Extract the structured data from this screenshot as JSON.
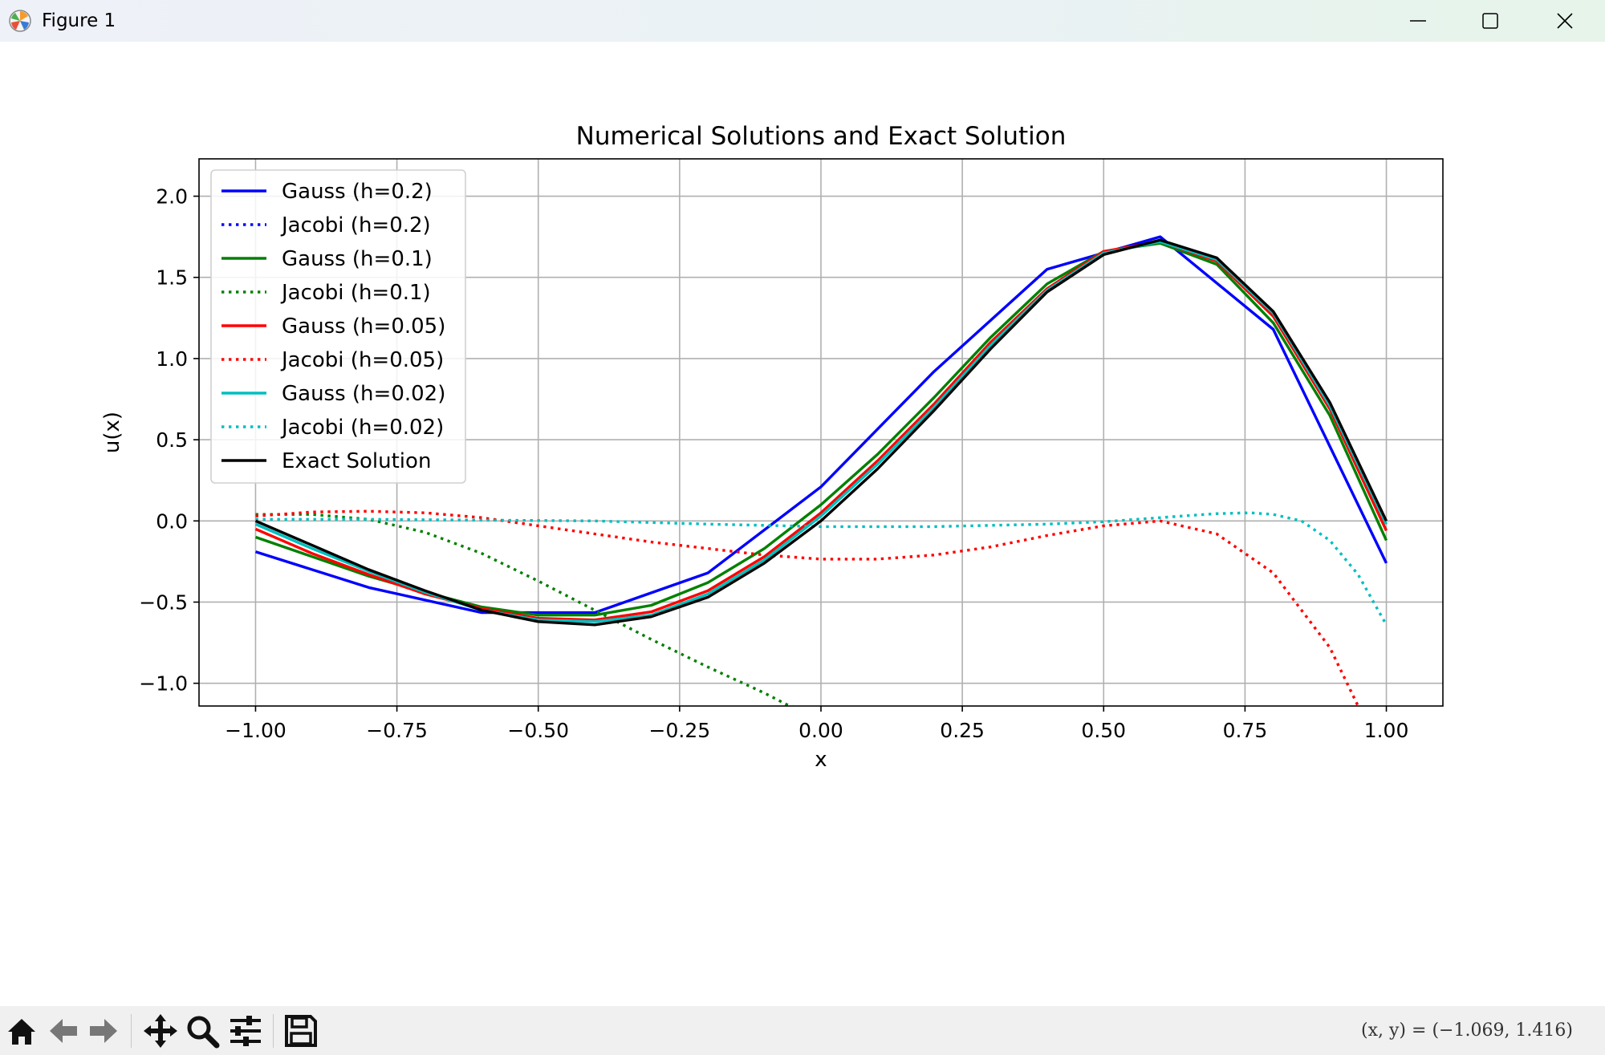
{
  "window": {
    "title": "Figure 1"
  },
  "status": {
    "coords": "(x, y) = (−1.069, 1.416)"
  },
  "toolbar": {
    "buttons": [
      "home-icon",
      "back-arrow-icon",
      "forward-arrow-icon",
      "pan-icon",
      "zoom-icon",
      "configure-subplots-icon",
      "save-icon"
    ]
  },
  "chart_data": {
    "type": "line",
    "title": "Numerical Solutions and Exact Solution",
    "xlabel": "x",
    "ylabel": "u(x)",
    "xlim": [
      -1.1,
      1.1
    ],
    "ylim": [
      -1.14,
      2.23
    ],
    "xticks": [
      -1.0,
      -0.75,
      -0.5,
      -0.25,
      0.0,
      0.25,
      0.5,
      0.75,
      1.0
    ],
    "xtick_labels": [
      "−1.00",
      "−0.75",
      "−0.50",
      "−0.25",
      "0.00",
      "0.25",
      "0.50",
      "0.75",
      "1.00"
    ],
    "yticks": [
      -1.0,
      -0.5,
      0.0,
      0.5,
      1.0,
      1.5,
      2.0
    ],
    "ytick_labels": [
      "−1.0",
      "−0.5",
      "0.0",
      "0.5",
      "1.0",
      "1.5",
      "2.0"
    ],
    "grid": true,
    "legend_position": "upper-left",
    "series": [
      {
        "name": "Gauss (h=0.2)",
        "color": "#0000ff",
        "style": "solid",
        "x": [
          -1.0,
          -0.8,
          -0.6,
          -0.4,
          -0.2,
          0.0,
          0.2,
          0.4,
          0.6,
          0.8,
          1.0
        ],
        "y": [
          -0.19,
          -0.41,
          -0.565,
          -0.565,
          -0.32,
          0.21,
          0.92,
          1.55,
          1.75,
          1.18,
          -0.26
        ]
      },
      {
        "name": "Jacobi (h=0.2)",
        "color": "#0000ff",
        "style": "dotted",
        "x": [],
        "y": []
      },
      {
        "name": "Gauss (h=0.1)",
        "color": "#008000",
        "style": "solid",
        "x": [
          -1.0,
          -0.9,
          -0.8,
          -0.7,
          -0.6,
          -0.5,
          -0.4,
          -0.3,
          -0.2,
          -0.1,
          0.0,
          0.1,
          0.2,
          0.3,
          0.4,
          0.5,
          0.6,
          0.7,
          0.8,
          0.9,
          1.0
        ],
        "y": [
          -0.1,
          -0.22,
          -0.34,
          -0.44,
          -0.53,
          -0.58,
          -0.58,
          -0.52,
          -0.38,
          -0.17,
          0.1,
          0.41,
          0.76,
          1.13,
          1.46,
          1.66,
          1.71,
          1.58,
          1.22,
          0.65,
          -0.12
        ]
      },
      {
        "name": "Jacobi (h=0.1)",
        "color": "#008000",
        "style": "dotted",
        "x": [
          -1.0,
          -0.9,
          -0.8,
          -0.7,
          -0.6,
          -0.5,
          -0.4,
          -0.3,
          -0.2,
          -0.1,
          -0.05
        ],
        "y": [
          0.04,
          0.04,
          0.01,
          -0.07,
          -0.2,
          -0.37,
          -0.55,
          -0.73,
          -0.9,
          -1.06,
          -1.15
        ]
      },
      {
        "name": "Gauss (h=0.05)",
        "color": "#ff0000",
        "style": "solid",
        "x": [
          -1.0,
          -0.9,
          -0.8,
          -0.7,
          -0.6,
          -0.5,
          -0.4,
          -0.3,
          -0.2,
          -0.1,
          0.0,
          0.1,
          0.2,
          0.3,
          0.4,
          0.5,
          0.6,
          0.7,
          0.8,
          0.9,
          1.0
        ],
        "y": [
          -0.05,
          -0.2,
          -0.33,
          -0.45,
          -0.54,
          -0.6,
          -0.61,
          -0.56,
          -0.43,
          -0.22,
          0.05,
          0.37,
          0.72,
          1.1,
          1.43,
          1.66,
          1.72,
          1.6,
          1.26,
          0.69,
          -0.06
        ]
      },
      {
        "name": "Jacobi (h=0.05)",
        "color": "#ff0000",
        "style": "dotted",
        "x": [
          -1.0,
          -0.9,
          -0.8,
          -0.7,
          -0.6,
          -0.5,
          -0.4,
          -0.3,
          -0.2,
          -0.1,
          0.0,
          0.1,
          0.2,
          0.3,
          0.4,
          0.5,
          0.6,
          0.7,
          0.8,
          0.9,
          0.95
        ],
        "y": [
          0.03,
          0.055,
          0.06,
          0.05,
          0.02,
          -0.03,
          -0.08,
          -0.13,
          -0.17,
          -0.21,
          -0.235,
          -0.235,
          -0.21,
          -0.16,
          -0.09,
          -0.03,
          0.0,
          -0.08,
          -0.32,
          -0.78,
          -1.14
        ]
      },
      {
        "name": "Gauss (h=0.02)",
        "color": "#00bfbf",
        "style": "solid",
        "x": [
          -1.0,
          -0.9,
          -0.8,
          -0.7,
          -0.6,
          -0.5,
          -0.4,
          -0.3,
          -0.2,
          -0.1,
          0.0,
          0.1,
          0.2,
          0.3,
          0.4,
          0.5,
          0.6,
          0.7,
          0.8,
          0.9,
          1.0
        ],
        "y": [
          -0.02,
          -0.17,
          -0.31,
          -0.44,
          -0.55,
          -0.61,
          -0.62,
          -0.58,
          -0.45,
          -0.24,
          0.03,
          0.35,
          0.7,
          1.08,
          1.42,
          1.65,
          1.72,
          1.61,
          1.28,
          0.71,
          -0.02
        ]
      },
      {
        "name": "Jacobi (h=0.02)",
        "color": "#00bfbf",
        "style": "dotted",
        "x": [
          -1.0,
          -0.8,
          -0.6,
          -0.4,
          -0.2,
          0.0,
          0.2,
          0.4,
          0.5,
          0.6,
          0.7,
          0.76,
          0.8,
          0.85,
          0.9,
          0.95,
          1.0
        ],
        "y": [
          0.01,
          0.01,
          0.005,
          0.0,
          -0.02,
          -0.035,
          -0.035,
          -0.02,
          -0.005,
          0.02,
          0.045,
          0.05,
          0.04,
          0.0,
          -0.12,
          -0.33,
          -0.64
        ]
      },
      {
        "name": "Exact Solution",
        "color": "#000000",
        "style": "solid",
        "x": [
          -1.0,
          -0.9,
          -0.8,
          -0.7,
          -0.6,
          -0.5,
          -0.4,
          -0.3,
          -0.2,
          -0.1,
          0.0,
          0.1,
          0.2,
          0.3,
          0.4,
          0.5,
          0.6,
          0.7,
          0.8,
          0.9,
          1.0
        ],
        "y": [
          0.0,
          -0.15,
          -0.3,
          -0.43,
          -0.55,
          -0.62,
          -0.64,
          -0.59,
          -0.47,
          -0.26,
          0.0,
          0.32,
          0.68,
          1.06,
          1.41,
          1.64,
          1.73,
          1.62,
          1.29,
          0.73,
          0.0
        ]
      }
    ]
  }
}
